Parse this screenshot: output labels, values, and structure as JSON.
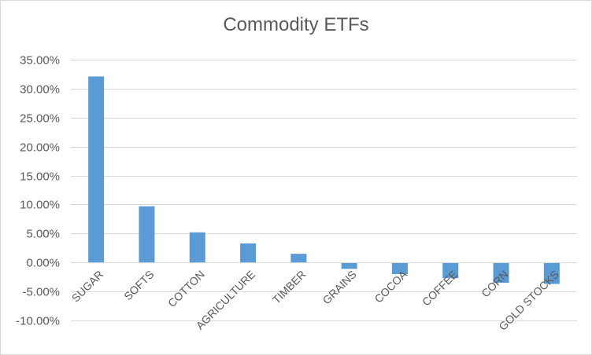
{
  "chart_data": {
    "type": "bar",
    "title": "Commodity ETFs",
    "categories": [
      "SUGAR",
      "SOFTS",
      "COTTON",
      "AGRICULTURE",
      "TIMBER",
      "GRAINS",
      "COCOA",
      "COFFEE",
      "CORN",
      "GOLD STOCKS"
    ],
    "values": [
      32.1,
      9.7,
      5.2,
      3.3,
      1.5,
      -1.1,
      -2.0,
      -2.7,
      -3.5,
      -3.7
    ],
    "ylim": [
      -10,
      35
    ],
    "yticks": [
      35,
      30,
      25,
      20,
      15,
      10,
      5,
      0,
      -5,
      -10
    ],
    "ytick_labels": [
      "35.00%",
      "30.00%",
      "25.00%",
      "20.00%",
      "15.00%",
      "10.00%",
      "5.00%",
      "0.00%",
      "-5.00%",
      "-10.00%"
    ],
    "xlabel": "",
    "ylabel": "",
    "grid": true,
    "bar_color": "#5b9bd5",
    "grid_color": "#d9d9d9",
    "text_color": "#595959"
  }
}
